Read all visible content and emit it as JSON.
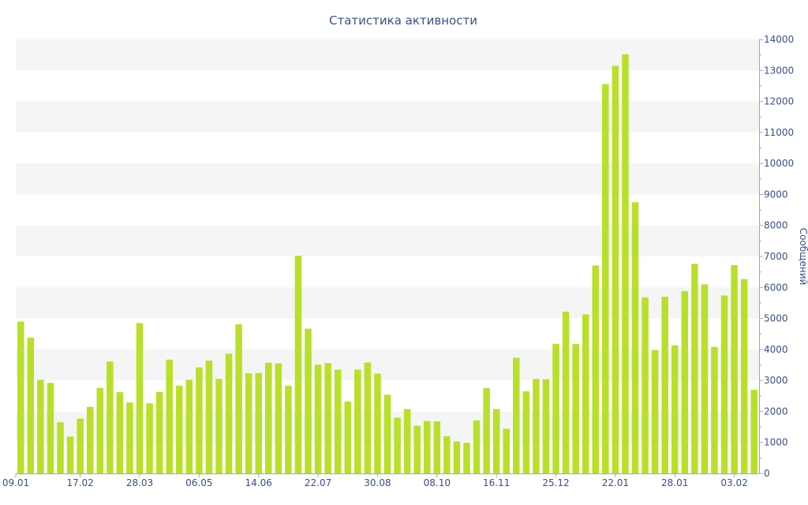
{
  "chart_data": {
    "type": "bar",
    "title": "Статистика активности",
    "ylabel": "Сообщений",
    "xlabel": "",
    "ylim": [
      0,
      14000
    ],
    "y_ticks": [
      0,
      1000,
      2000,
      3000,
      4000,
      5000,
      6000,
      7000,
      8000,
      9000,
      10000,
      11000,
      12000,
      13000,
      14000
    ],
    "y_axis_side": "right",
    "grid": "alternating horizontal bands",
    "x_tick_labels": [
      {
        "label": "09.01",
        "index": 0
      },
      {
        "label": "17.02",
        "index": 6
      },
      {
        "label": "28.03",
        "index": 12
      },
      {
        "label": "06.05",
        "index": 18
      },
      {
        "label": "14.06",
        "index": 24
      },
      {
        "label": "22.07",
        "index": 30
      },
      {
        "label": "30.08",
        "index": 36
      },
      {
        "label": "08.10",
        "index": 42
      },
      {
        "label": "16.11",
        "index": 48
      },
      {
        "label": "25.12",
        "index": 54
      },
      {
        "label": "22.01",
        "index": 60
      },
      {
        "label": "28.01",
        "index": 66
      },
      {
        "label": "03.02",
        "index": 72
      }
    ],
    "values": [
      4900,
      4380,
      3020,
      2920,
      1650,
      1190,
      1770,
      2150,
      2760,
      3610,
      2620,
      2290,
      4850,
      2260,
      2630,
      3670,
      2830,
      3020,
      3420,
      3640,
      3050,
      3860,
      4810,
      3230,
      3240,
      3570,
      3550,
      2830,
      7020,
      4670,
      3510,
      3560,
      3350,
      2320,
      3350,
      3580,
      3220,
      2540,
      1800,
      2080,
      1540,
      1690,
      1680,
      1200,
      1030,
      990,
      1710,
      2750,
      2080,
      1440,
      3730,
      2650,
      3050,
      3040,
      4180,
      5220,
      4180,
      5130,
      6710,
      12560,
      13150,
      13520,
      8750,
      5680,
      3980,
      5700,
      4130,
      5880,
      6760,
      6100,
      4080,
      5740,
      6720,
      6270,
      2700
    ],
    "colors": {
      "bar": "#b8e02a",
      "band": "#f5f5f5",
      "text": "#3a4f8a",
      "axis": "#9aa6c8"
    }
  }
}
